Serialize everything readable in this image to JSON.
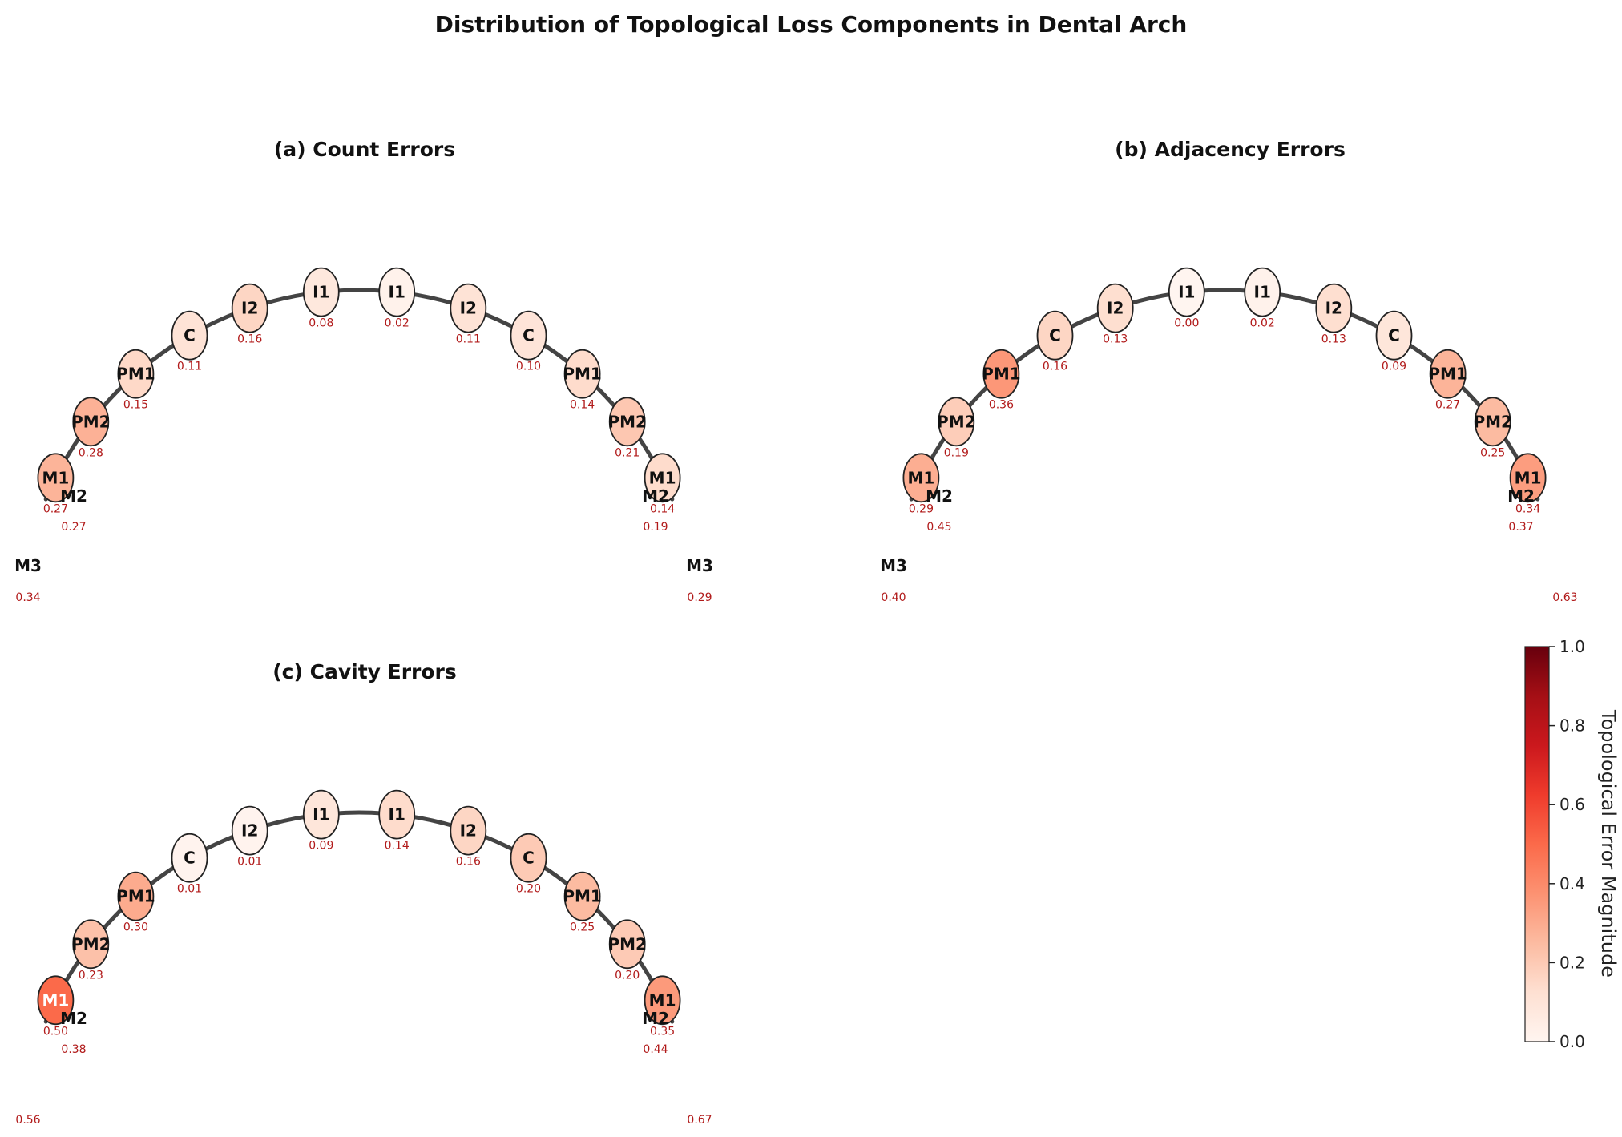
{
  "title": "Distribution of Topological Loss Components in Dental Arch",
  "colorbar": {
    "label": "Topological Error Magnitude",
    "range": [
      0,
      1
    ],
    "ticks": [
      "0.0",
      "0.2",
      "0.4",
      "0.6",
      "0.8",
      "1.0"
    ]
  },
  "chart_data": [
    {
      "type": "scatter",
      "title": "(a) Count Errors",
      "colormap": "Reds",
      "color_range": [
        0,
        1
      ],
      "arch_teeth": [
        {
          "label": "M1",
          "value": 0.27
        },
        {
          "label": "PM2",
          "value": 0.28
        },
        {
          "label": "PM1",
          "value": 0.15
        },
        {
          "label": "C",
          "value": 0.11
        },
        {
          "label": "I2",
          "value": 0.16
        },
        {
          "label": "I1",
          "value": 0.08
        },
        {
          "label": "I1",
          "value": 0.02
        },
        {
          "label": "I2",
          "value": 0.11
        },
        {
          "label": "C",
          "value": 0.1
        },
        {
          "label": "PM1",
          "value": 0.14
        },
        {
          "label": "PM2",
          "value": 0.21
        },
        {
          "label": "M1",
          "value": 0.14
        }
      ],
      "outer_teeth": [
        {
          "label": "M2",
          "value": 0.27
        },
        {
          "label": "M2",
          "value": 0.19
        },
        {
          "label": "M3",
          "value": 0.34
        },
        {
          "label": "M3",
          "value": 0.29
        }
      ]
    },
    {
      "type": "scatter",
      "title": "(b) Adjacency Errors",
      "colormap": "Reds",
      "color_range": [
        0,
        1
      ],
      "arch_teeth": [
        {
          "label": "M1",
          "value": 0.29
        },
        {
          "label": "PM2",
          "value": 0.19
        },
        {
          "label": "PM1",
          "value": 0.36
        },
        {
          "label": "C",
          "value": 0.16
        },
        {
          "label": "I2",
          "value": 0.13
        },
        {
          "label": "I1",
          "value": 0.0
        },
        {
          "label": "I1",
          "value": 0.02
        },
        {
          "label": "I2",
          "value": 0.13
        },
        {
          "label": "C",
          "value": 0.09
        },
        {
          "label": "PM1",
          "value": 0.27
        },
        {
          "label": "PM2",
          "value": 0.25
        },
        {
          "label": "M1",
          "value": 0.34
        }
      ],
      "outer_teeth": [
        {
          "label": "M2",
          "value": 0.45
        },
        {
          "label": "M2",
          "value": 0.37
        },
        {
          "label": "M3",
          "value": 0.4
        },
        {
          "label": "",
          "value": 0.63
        }
      ]
    },
    {
      "type": "scatter",
      "title": "(c) Cavity Errors",
      "colormap": "Reds",
      "color_range": [
        0,
        1
      ],
      "arch_teeth": [
        {
          "label": "M1",
          "value": 0.5
        },
        {
          "label": "PM2",
          "value": 0.23
        },
        {
          "label": "PM1",
          "value": 0.3
        },
        {
          "label": "C",
          "value": 0.01
        },
        {
          "label": "I2",
          "value": 0.01
        },
        {
          "label": "I1",
          "value": 0.09
        },
        {
          "label": "I1",
          "value": 0.14
        },
        {
          "label": "I2",
          "value": 0.16
        },
        {
          "label": "C",
          "value": 0.2
        },
        {
          "label": "PM1",
          "value": 0.25
        },
        {
          "label": "PM2",
          "value": 0.2
        },
        {
          "label": "M1",
          "value": 0.35
        }
      ],
      "outer_teeth": [
        {
          "label": "M2",
          "value": 0.38
        },
        {
          "label": "M2",
          "value": 0.44
        },
        {
          "label": "",
          "value": 0.56
        },
        {
          "label": "",
          "value": 0.67
        }
      ]
    }
  ]
}
